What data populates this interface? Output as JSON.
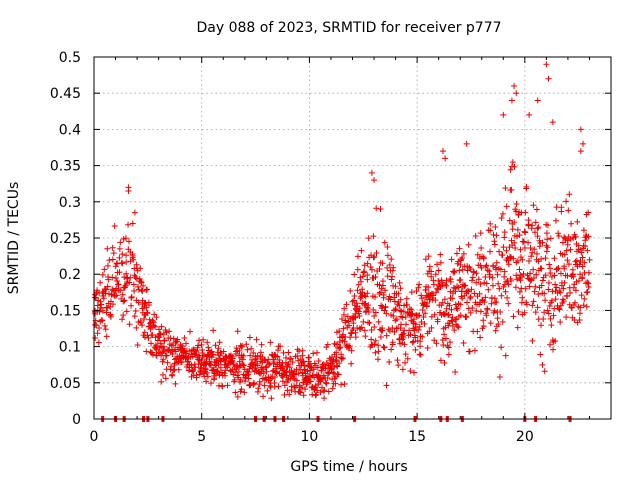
{
  "chart_data": {
    "type": "scatter",
    "title": "Day 088 of 2023, SRMTID for receiver p777",
    "xlabel": "GPS time / hours",
    "ylabel": "SRMTID / TECUs",
    "xlim": [
      0,
      24
    ],
    "ylim": [
      0,
      0.5
    ],
    "grid": true,
    "marker": "+",
    "marker_color": "#ee0000",
    "x_ticks": [
      0,
      5,
      10,
      15,
      20
    ],
    "x_tick_labels": [
      "0",
      "5",
      "10",
      "15",
      "20"
    ],
    "y_ticks": [
      0,
      0.05,
      0.1,
      0.15,
      0.2,
      0.25,
      0.3,
      0.35,
      0.4,
      0.45,
      0.5
    ],
    "y_tick_labels": [
      "0",
      "0.05",
      "0.1",
      "0.15",
      "0.2",
      "0.25",
      "0.3",
      "0.35",
      "0.4",
      "0.45",
      "0.5"
    ],
    "trend_profile": {
      "hours": [
        0.0,
        0.5,
        1.0,
        1.5,
        2.0,
        2.5,
        3.0,
        3.5,
        4.0,
        5.0,
        6.0,
        7.0,
        8.0,
        9.0,
        10.0,
        10.5,
        11.0,
        11.5,
        12.0,
        12.5,
        13.0,
        13.5,
        14.0,
        14.5,
        15.0,
        15.5,
        16.0,
        16.5,
        17.0,
        18.0,
        19.0,
        19.5,
        20.0,
        20.5,
        21.0,
        21.5,
        22.0,
        22.5,
        23.0
      ],
      "median": [
        0.15,
        0.16,
        0.19,
        0.2,
        0.19,
        0.13,
        0.11,
        0.09,
        0.085,
        0.08,
        0.075,
        0.07,
        0.07,
        0.065,
        0.06,
        0.055,
        0.07,
        0.1,
        0.14,
        0.16,
        0.17,
        0.17,
        0.14,
        0.12,
        0.13,
        0.16,
        0.17,
        0.15,
        0.17,
        0.18,
        0.21,
        0.24,
        0.22,
        0.22,
        0.18,
        0.2,
        0.21,
        0.2,
        0.21
      ],
      "spread": [
        0.04,
        0.05,
        0.06,
        0.06,
        0.05,
        0.04,
        0.035,
        0.03,
        0.03,
        0.03,
        0.03,
        0.03,
        0.03,
        0.03,
        0.03,
        0.025,
        0.03,
        0.04,
        0.05,
        0.06,
        0.09,
        0.08,
        0.06,
        0.05,
        0.05,
        0.07,
        0.07,
        0.06,
        0.07,
        0.07,
        0.09,
        0.1,
        0.08,
        0.09,
        0.1,
        0.08,
        0.07,
        0.07,
        0.07
      ]
    },
    "outliers": [
      {
        "x": 1.6,
        "y": 0.32
      },
      {
        "x": 1.6,
        "y": 0.315
      },
      {
        "x": 1.9,
        "y": 0.285
      },
      {
        "x": 1.8,
        "y": 0.27
      },
      {
        "x": 12.9,
        "y": 0.34
      },
      {
        "x": 13.0,
        "y": 0.33
      },
      {
        "x": 13.3,
        "y": 0.29
      },
      {
        "x": 16.2,
        "y": 0.37
      },
      {
        "x": 16.3,
        "y": 0.36
      },
      {
        "x": 17.3,
        "y": 0.38
      },
      {
        "x": 19.0,
        "y": 0.42
      },
      {
        "x": 19.5,
        "y": 0.46
      },
      {
        "x": 19.6,
        "y": 0.45
      },
      {
        "x": 19.4,
        "y": 0.44
      },
      {
        "x": 20.2,
        "y": 0.42
      },
      {
        "x": 20.6,
        "y": 0.44
      },
      {
        "x": 21.0,
        "y": 0.49
      },
      {
        "x": 21.1,
        "y": 0.47
      },
      {
        "x": 21.3,
        "y": 0.41
      },
      {
        "x": 22.6,
        "y": 0.4
      },
      {
        "x": 22.7,
        "y": 0.38
      },
      {
        "x": 22.6,
        "y": 0.37
      }
    ],
    "zero_markers": [
      0.4,
      1.0,
      1.4,
      2.3,
      2.5,
      3.2,
      7.5,
      7.9,
      8.4,
      8.8,
      10.4,
      12.1,
      14.9,
      16.1,
      16.4,
      17.1,
      20.0,
      20.5,
      22.1
    ]
  }
}
